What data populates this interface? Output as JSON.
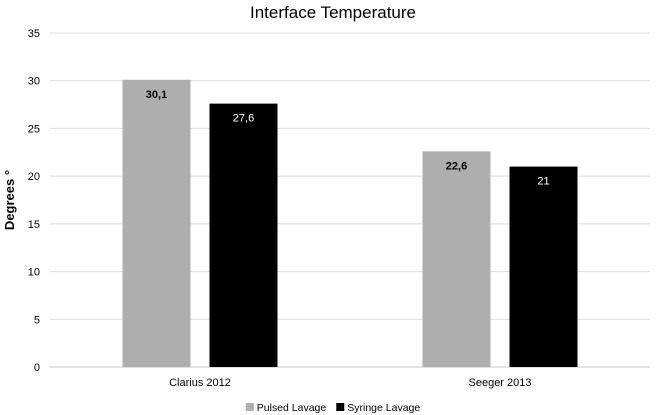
{
  "chart_data": {
    "type": "bar",
    "title": "Interface Temperature",
    "ylabel": "Degrees °",
    "xlabel": "",
    "ylim": [
      0,
      35
    ],
    "yticks": [
      0,
      5,
      10,
      15,
      20,
      25,
      30,
      35
    ],
    "grid": true,
    "legend_position": "bottom",
    "categories": [
      "Clarius 2012",
      "Seeger 2013"
    ],
    "series": [
      {
        "name": "Pulsed Lavage",
        "color": "#aeaeae",
        "values": [
          30.1,
          22.6
        ],
        "labels": [
          "30,1",
          "22,6"
        ],
        "label_color": "#000000",
        "label_bold": true
      },
      {
        "name": "Syringe Lavage",
        "color": "#000000",
        "values": [
          27.6,
          21
        ],
        "labels": [
          "27,6",
          "21"
        ],
        "label_color": "#ffffff",
        "label_bold": false
      }
    ]
  }
}
